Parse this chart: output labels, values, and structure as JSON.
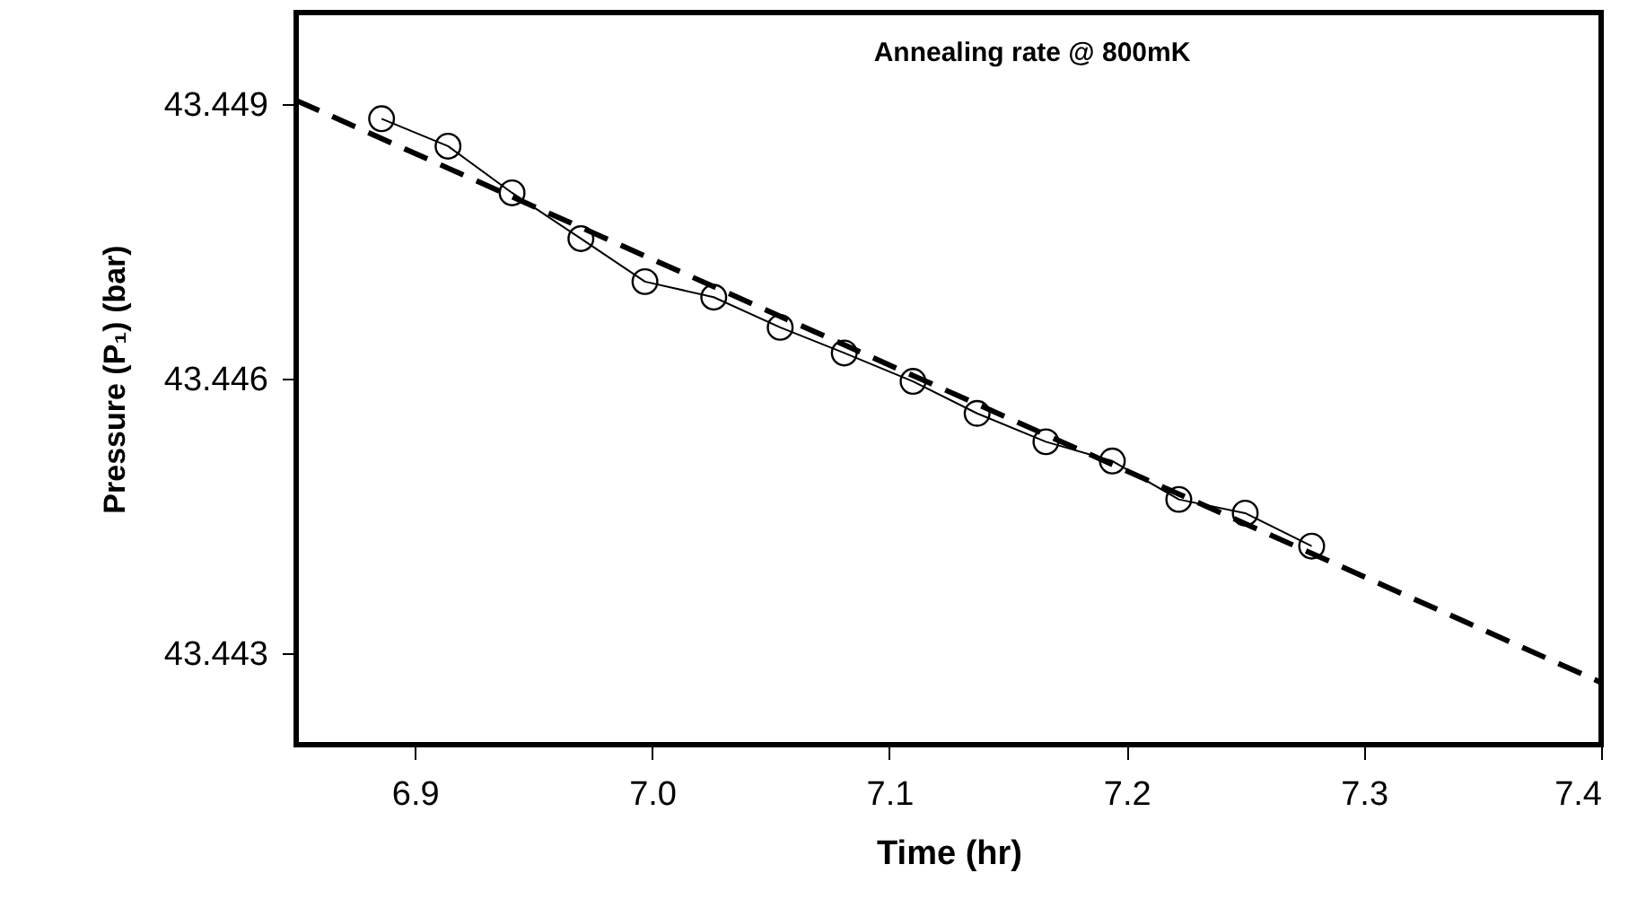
{
  "chart_data": {
    "type": "line",
    "title": "Annealing rate @ 800mK",
    "xlabel": "Time (hr)",
    "ylabel": "Pressure (P₁) (bar)",
    "xlim": [
      6.85,
      7.4
    ],
    "xticks": [
      {
        "value": 6.9,
        "label": "6.9"
      },
      {
        "value": 7.0,
        "label": "7.0"
      },
      {
        "value": 7.1,
        "label": "7.1"
      },
      {
        "value": 7.2,
        "label": "7.2"
      },
      {
        "value": 7.3,
        "label": "7.3"
      },
      {
        "value": 7.4,
        "label": "7.4"
      }
    ],
    "ylim": [
      43.442,
      43.45
    ],
    "yticks": [
      43.449,
      43.446,
      43.443
    ],
    "grid": false,
    "series": [
      {
        "type": "line",
        "color": "#000000",
        "marker": "circle",
        "line_style": "solid",
        "x": [
          6.886,
          6.914,
          6.941,
          6.97,
          6.997,
          7.026,
          7.054,
          7.081,
          7.11,
          7.137,
          7.166,
          7.194,
          7.222,
          7.25,
          7.278
        ],
        "values": [
          43.44884,
          43.44854,
          43.44803,
          43.44753,
          43.44706,
          43.44689,
          43.44656,
          43.44628,
          43.44597,
          43.44562,
          43.44531,
          43.4451,
          43.44468,
          43.44453,
          43.44417
        ]
      },
      {
        "type": "line",
        "color": "#000000",
        "marker": "none",
        "line_style": "dashed",
        "x": [
          6.85,
          7.4
        ],
        "values": [
          43.44904,
          43.44268
        ]
      }
    ]
  }
}
